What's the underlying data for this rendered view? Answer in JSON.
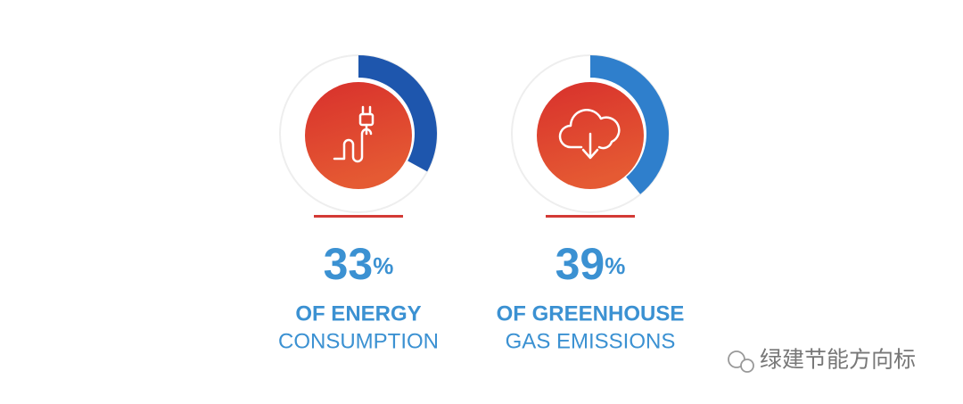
{
  "chart_data": [
    {
      "type": "donut",
      "value": 33,
      "unit": "%",
      "caption": [
        "OF ENERGY",
        "CONSUMPTION"
      ],
      "color": "#1e56ad"
    },
    {
      "type": "donut",
      "value": 39,
      "unit": "%",
      "caption": [
        "OF GREENHOUSE",
        "GAS EMISSIONS"
      ],
      "color": "#2f7fcc"
    }
  ],
  "watermark": "绿建节能方向标"
}
